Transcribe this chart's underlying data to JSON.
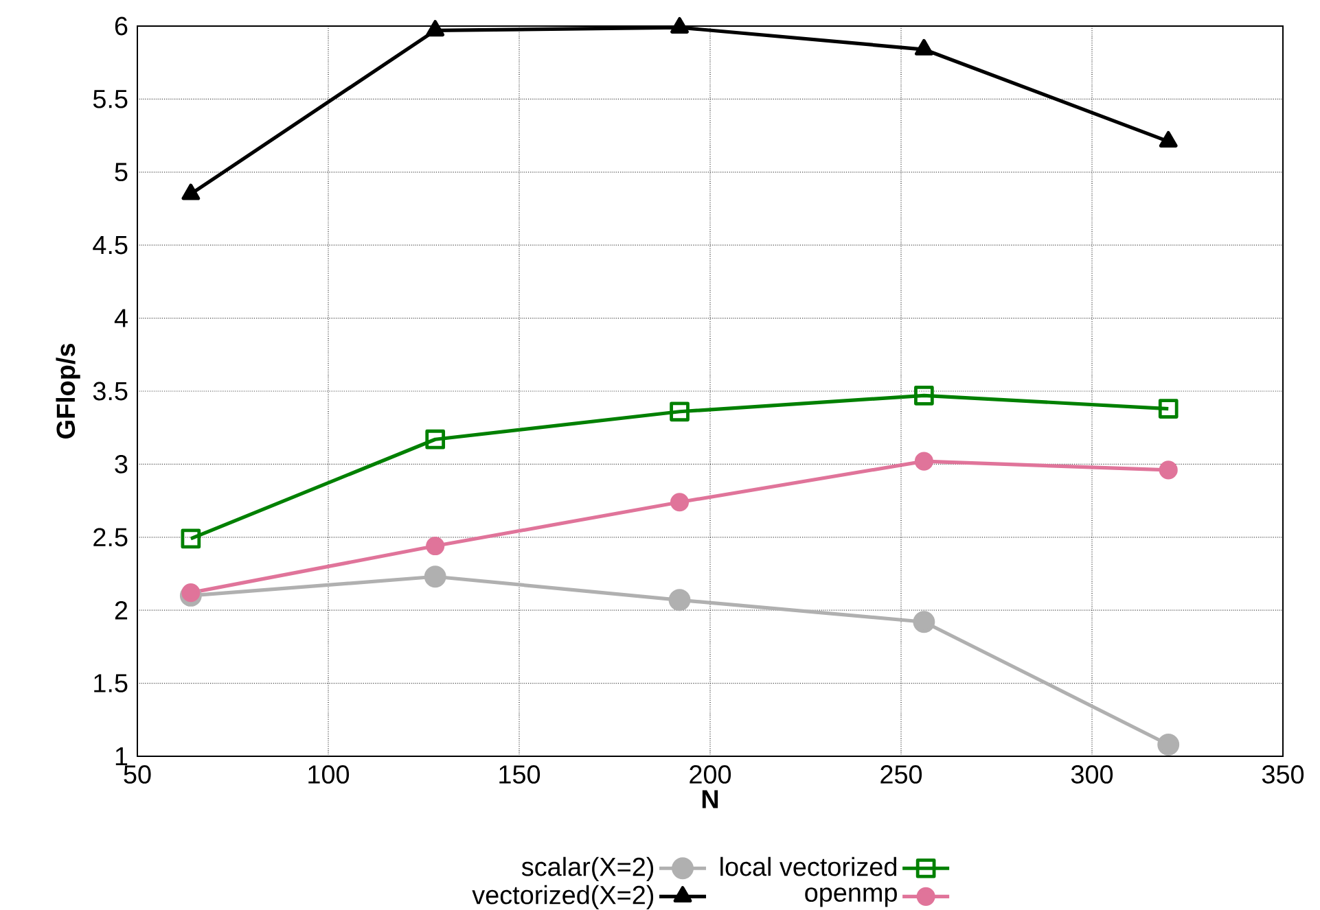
{
  "chart_data": {
    "type": "line",
    "xlabel": "N",
    "ylabel": "GFlop/s",
    "x": [
      64,
      128,
      192,
      256,
      320
    ],
    "series": [
      {
        "name": "scalar(X=2)",
        "color": "#b0b0b0",
        "marker": "circle",
        "values": [
          2.1,
          2.23,
          2.07,
          1.92,
          1.08
        ]
      },
      {
        "name": "vectorized(X=2)",
        "color": "#000000",
        "marker": "triangle",
        "values": [
          4.85,
          5.97,
          5.99,
          5.84,
          5.21
        ]
      },
      {
        "name": "local vectorized",
        "color": "#008000",
        "marker": "square",
        "values": [
          2.49,
          3.17,
          3.36,
          3.47,
          3.38
        ]
      },
      {
        "name": "openmp",
        "color": "#e0749a",
        "marker": "circle",
        "values": [
          2.12,
          2.44,
          2.74,
          3.02,
          2.96
        ]
      }
    ],
    "xlim": [
      50,
      350
    ],
    "xticks": [
      50,
      100,
      150,
      200,
      250,
      300,
      350
    ],
    "ylim": [
      1,
      6
    ],
    "yticks": [
      1,
      1.5,
      2,
      2.5,
      3,
      3.5,
      4,
      4.5,
      5,
      5.5,
      6
    ],
    "grid": true,
    "legend": "bottom",
    "line_style": "solid"
  }
}
